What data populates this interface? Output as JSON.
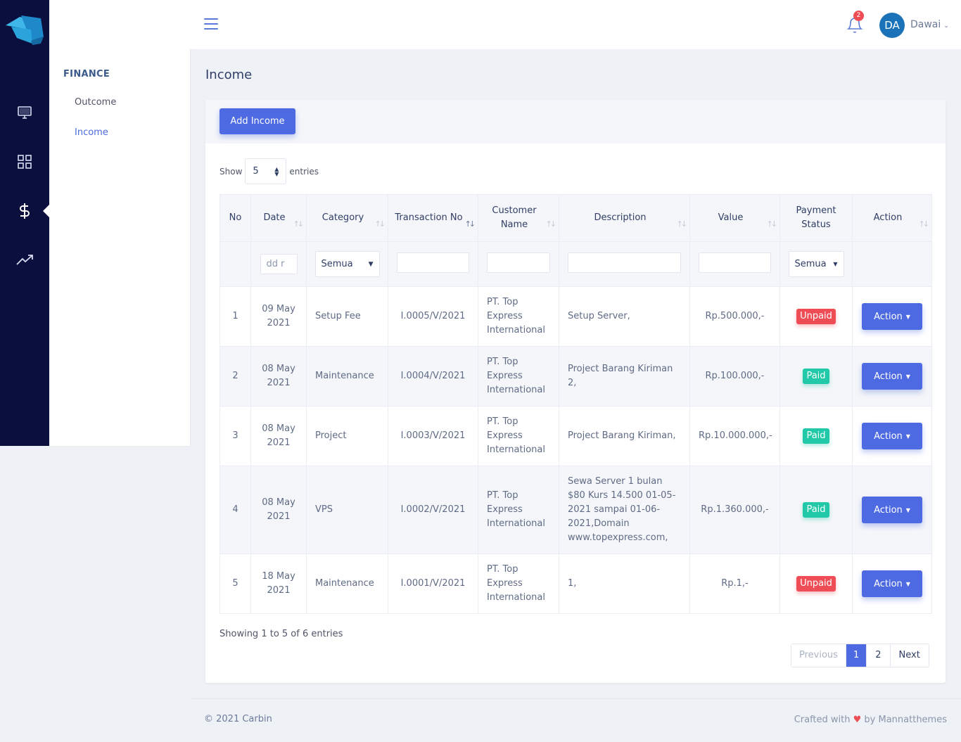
{
  "colors": {
    "rail": "#0b0f3e",
    "primary": "#4d6ae2",
    "danger": "#ef4d56",
    "success": "#22c9a8"
  },
  "sidebar": {
    "section_title": "FINANCE",
    "items": [
      {
        "label": "Outcome"
      },
      {
        "label": "Income"
      }
    ]
  },
  "rail_icons": [
    "monitor-icon",
    "apps-grid-icon",
    "dollar-icon",
    "trending-up-icon"
  ],
  "topbar": {
    "notification_count": "2",
    "avatar_initials": "DA",
    "user_name": "Dawai"
  },
  "page": {
    "title": "Income",
    "add_button": "Add Income"
  },
  "length": {
    "show": "Show",
    "value": "5",
    "entries": "entries"
  },
  "table": {
    "headers": [
      "No",
      "Date",
      "Category",
      "Transaction No",
      "Customer Name",
      "Description",
      "Value",
      "Payment Status",
      "Action"
    ],
    "filters": {
      "date_placeholder": "dd r",
      "category": "Semua",
      "status": "Semua"
    },
    "rows": [
      {
        "no": "1",
        "date": "09 May 2021",
        "category": "Setup Fee",
        "trx": "I.0005/V/2021",
        "customer": "PT. Top Express International",
        "description": "Setup Server,",
        "value": "Rp.500.000,-",
        "status": "Unpaid",
        "action": "Action"
      },
      {
        "no": "2",
        "date": "08 May 2021",
        "category": "Maintenance",
        "trx": "I.0004/V/2021",
        "customer": "PT. Top Express International",
        "description": "Project Barang Kiriman 2,",
        "value": "Rp.100.000,-",
        "status": "Paid",
        "action": "Action"
      },
      {
        "no": "3",
        "date": "08 May 2021",
        "category": "Project",
        "trx": "I.0003/V/2021",
        "customer": "PT. Top Express International",
        "description": "Project Barang Kiriman,",
        "value": "Rp.10.000.000,-",
        "status": "Paid",
        "action": "Action"
      },
      {
        "no": "4",
        "date": "08 May 2021",
        "category": "VPS",
        "trx": "I.0002/V/2021",
        "customer": "PT. Top Express International",
        "description": "Sewa Server 1 bulan $80 Kurs 14.500 01-05-2021 sampai 01-06-2021,Domain www.topexpress.com,",
        "value": "Rp.1.360.000,-",
        "status": "Paid",
        "action": "Action"
      },
      {
        "no": "5",
        "date": "18 May 2021",
        "category": "Maintenance",
        "trx": "I.0001/V/2021",
        "customer": "PT. Top Express International",
        "description": "1,",
        "value": "Rp.1,-",
        "status": "Unpaid",
        "action": "Action"
      }
    ]
  },
  "info": "Showing 1 to 5 of 6 entries",
  "pagination": {
    "previous": "Previous",
    "pages": [
      "1",
      "2"
    ],
    "next": "Next"
  },
  "footer": {
    "left": "© 2021 Carbin",
    "crafted": "Crafted with",
    "by": "by Mannatthemes"
  }
}
